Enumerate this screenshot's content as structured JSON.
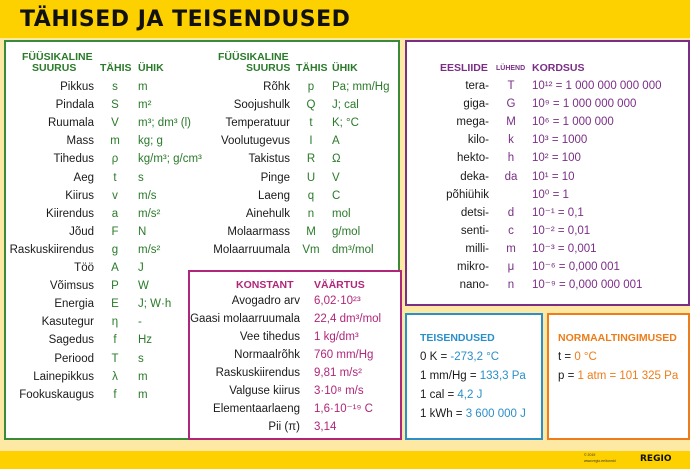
{
  "title": "TÄHISED JA TEISENDUSED",
  "left": {
    "headers": {
      "quantity_1": "FÜÜSIKALINE",
      "quantity_2": "SUURUS",
      "symbol": "TÄHIS",
      "unit": "ÜHIK"
    },
    "rows": [
      {
        "name": "Pikkus",
        "symbol": "s",
        "unit": "m"
      },
      {
        "name": "Pindala",
        "symbol": "S",
        "unit": "m²"
      },
      {
        "name": "Ruumala",
        "symbol": "V",
        "unit": "m³; dm³ (l)"
      },
      {
        "name": "Mass",
        "symbol": "m",
        "unit": "kg; g"
      },
      {
        "name": "Tihedus",
        "symbol": "ρ",
        "unit": "kg/m³; g/cm³"
      },
      {
        "name": "Aeg",
        "symbol": "t",
        "unit": "s"
      },
      {
        "name": "Kiirus",
        "symbol": "v",
        "unit": "m/s"
      },
      {
        "name": "Kiirendus",
        "symbol": "a",
        "unit": "m/s²"
      },
      {
        "name": "Jõud",
        "symbol": "F",
        "unit": "N"
      },
      {
        "name": "Raskuskiirendus",
        "symbol": "g",
        "unit": "m/s²"
      },
      {
        "name": "Töö",
        "symbol": "A",
        "unit": "J"
      },
      {
        "name": "Võimsus",
        "symbol": "P",
        "unit": "W"
      },
      {
        "name": "Energia",
        "symbol": "E",
        "unit": "J; W·h"
      },
      {
        "name": "Kasutegur",
        "symbol": "η",
        "unit": "-"
      },
      {
        "name": "Sagedus",
        "symbol": "f",
        "unit": "Hz"
      },
      {
        "name": "Periood",
        "symbol": "T",
        "unit": "s"
      },
      {
        "name": "Lainepikkus",
        "symbol": "λ",
        "unit": "m"
      },
      {
        "name": "Fookuskaugus",
        "symbol": "f",
        "unit": "m"
      }
    ]
  },
  "middle": {
    "headers": {
      "quantity_1": "FÜÜSIKALINE",
      "quantity_2": "SUURUS",
      "symbol": "TÄHIS",
      "unit": "ÜHIK"
    },
    "rows": [
      {
        "name": "Rõhk",
        "symbol": "p",
        "unit": "Pa; mm/Hg"
      },
      {
        "name": "Soojushulk",
        "symbol": "Q",
        "unit": "J; cal"
      },
      {
        "name": "Temperatuur",
        "symbol": "t",
        "unit": "K; °C"
      },
      {
        "name": "Voolutugevus",
        "symbol": "I",
        "unit": "A"
      },
      {
        "name": "Takistus",
        "symbol": "R",
        "unit": "Ω"
      },
      {
        "name": "Pinge",
        "symbol": "U",
        "unit": "V"
      },
      {
        "name": "Laeng",
        "symbol": "q",
        "unit": "C"
      },
      {
        "name": "Ainehulk",
        "symbol": "n",
        "unit": "mol"
      },
      {
        "name": "Molaarmass",
        "symbol": "M",
        "unit": "g/mol"
      },
      {
        "name": "Molaarruumala",
        "symbol": "Vm",
        "unit": "dm³/mol"
      }
    ]
  },
  "constants": {
    "headers": {
      "name": "KONSTANT",
      "value": "VÄÄRTUS"
    },
    "rows": [
      {
        "name": "Avogadro arv",
        "value": "6,02·10²³"
      },
      {
        "name": "Gaasi molaarruumala",
        "value": "22,4 dm³/mol"
      },
      {
        "name": "Vee tihedus",
        "value": "1 kg/dm³"
      },
      {
        "name": "Normaalrõhk",
        "value": "760 mm/Hg"
      },
      {
        "name": "Raskuskiirendus",
        "value": "9,81 m/s²"
      },
      {
        "name": "Valguse kiirus",
        "value": "3·10⁸ m/s"
      },
      {
        "name": "Elementaarlaeng",
        "value": "1,6·10⁻¹⁹ C"
      },
      {
        "name": "Pii (π)",
        "value": "3,14"
      }
    ]
  },
  "prefixes": {
    "headers": {
      "prefix": "EESLIIDE",
      "symbol": "LÜHEND",
      "factor": "KORDSUS"
    },
    "rows": [
      {
        "prefix": "tera-",
        "symbol": "T",
        "factor": "10¹² = 1 000 000 000 000"
      },
      {
        "prefix": "giga-",
        "symbol": "G",
        "factor": "10⁹ = 1 000 000 000"
      },
      {
        "prefix": "mega-",
        "symbol": "M",
        "factor": "10⁶ = 1 000 000"
      },
      {
        "prefix": "kilo-",
        "symbol": "k",
        "factor": "10³ = 1000"
      },
      {
        "prefix": "hekto-",
        "symbol": "h",
        "factor": "10² = 100"
      },
      {
        "prefix": "deka-",
        "symbol": "da",
        "factor": "10¹ = 10"
      },
      {
        "prefix": "põhiühik",
        "symbol": "",
        "factor": "10⁰ = 1"
      },
      {
        "prefix": "detsi-",
        "symbol": "d",
        "factor": "10⁻¹ = 0,1"
      },
      {
        "prefix": "senti-",
        "symbol": "c",
        "factor": "10⁻² = 0,01"
      },
      {
        "prefix": "milli-",
        "symbol": "m",
        "factor": "10⁻³ = 0,001"
      },
      {
        "prefix": "mikro-",
        "symbol": "μ",
        "factor": "10⁻⁶ = 0,000 001"
      },
      {
        "prefix": "nano-",
        "symbol": "n",
        "factor": "10⁻⁹ = 0,000 000 001"
      }
    ]
  },
  "conversions": {
    "title": "TEISENDUSED",
    "rows": [
      {
        "left": "0 K =",
        "right": "-273,2 °C"
      },
      {
        "left": "1 mm/Hg =",
        "right": "133,3 Pa"
      },
      {
        "left": "1 cal =",
        "right": "4,2 J"
      },
      {
        "left": "1 kWh =",
        "right": "3 600 000 J"
      }
    ]
  },
  "normal": {
    "title": "NORMAALTINGIMUSED",
    "rows": [
      {
        "left": "t =",
        "right": "0 °C"
      },
      {
        "left": "p =",
        "right": "1 atm = 101 325 Pa"
      }
    ]
  },
  "footer": {
    "copyright": "© 2019",
    "website": "www.regio.ee/tunnid",
    "brand": "REGIO"
  },
  "colors": {
    "background": "#fde9a3",
    "bar": "#fdd000",
    "green": "#2a7a2a",
    "magenta": "#b0267a",
    "purple": "#7a2e86",
    "blue": "#2b8fc9",
    "orange": "#ec7d1a"
  }
}
